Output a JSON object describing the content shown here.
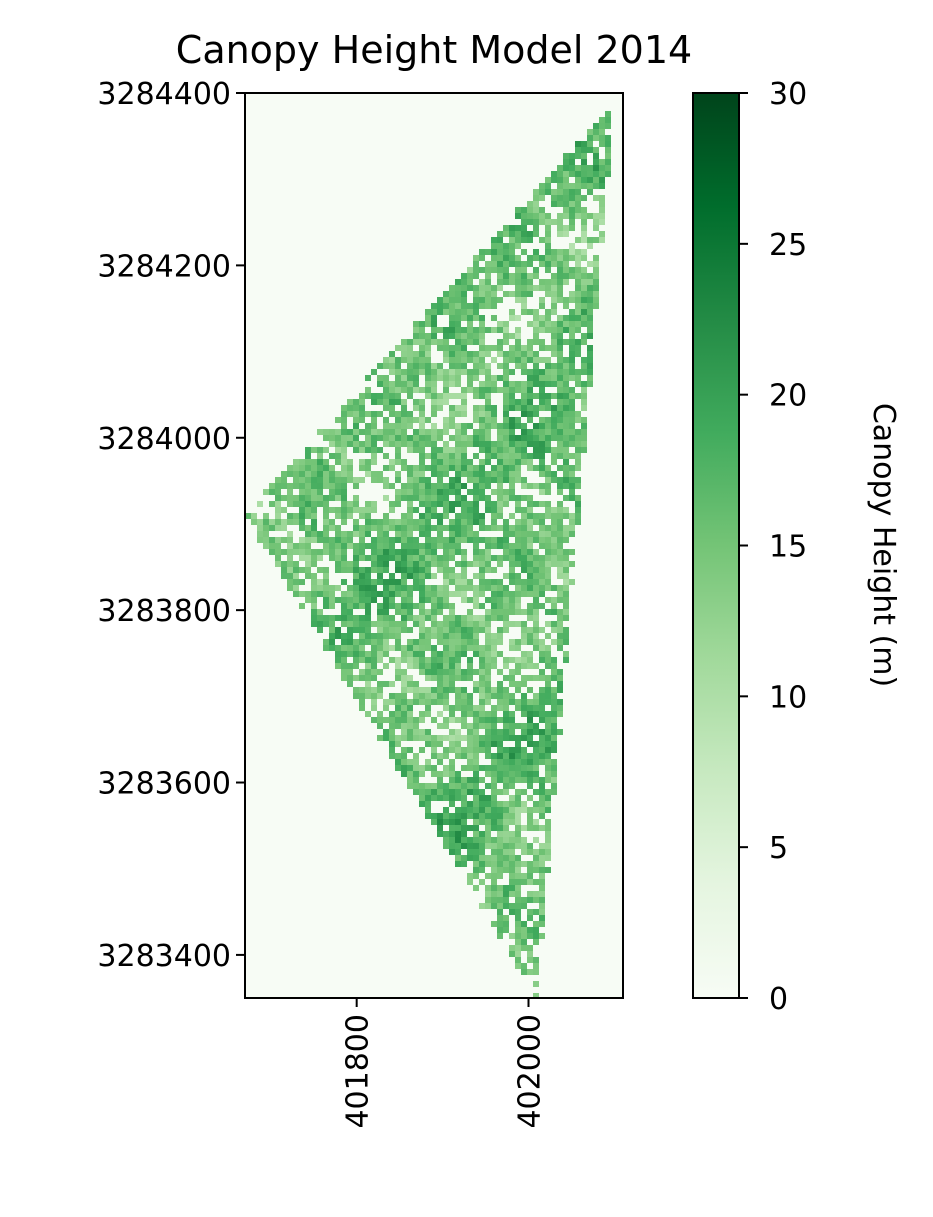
{
  "chart_data": {
    "type": "heatmap",
    "title": "Canopy Height Model 2014",
    "xlabel": "",
    "ylabel": "",
    "x_ticks": [
      401800,
      402000
    ],
    "x_tick_labels": [
      "401800",
      "402000"
    ],
    "y_ticks": [
      3283400,
      3283600,
      3283800,
      3284000,
      3284200,
      3284400
    ],
    "y_tick_labels": [
      "3283400",
      "3283600",
      "3283800",
      "3284000",
      "3284200",
      "3284400"
    ],
    "xlim": [
      401670,
      402110
    ],
    "ylim": [
      3283350,
      3284400
    ],
    "colormap": "Greens",
    "colormap_stops": [
      "#f7fcf5",
      "#e5f5e0",
      "#c7e9c0",
      "#a1d99b",
      "#74c476",
      "#41ab5d",
      "#238b45",
      "#006d2c",
      "#00441b"
    ],
    "grid": false,
    "colorbar": {
      "label": "Canopy Height (m)",
      "min": 0,
      "max": 30,
      "ticks": [
        0,
        5,
        10,
        15,
        20,
        25,
        30
      ],
      "tick_labels": [
        "0",
        "5",
        "10",
        "15",
        "20",
        "25",
        "30"
      ],
      "placement": "right"
    },
    "data_region": {
      "shape": "irregular triangle",
      "vertices": [
        [
          401670,
          3283910
        ],
        [
          402100,
          3284390
        ],
        [
          402010,
          3283350
        ]
      ]
    }
  }
}
